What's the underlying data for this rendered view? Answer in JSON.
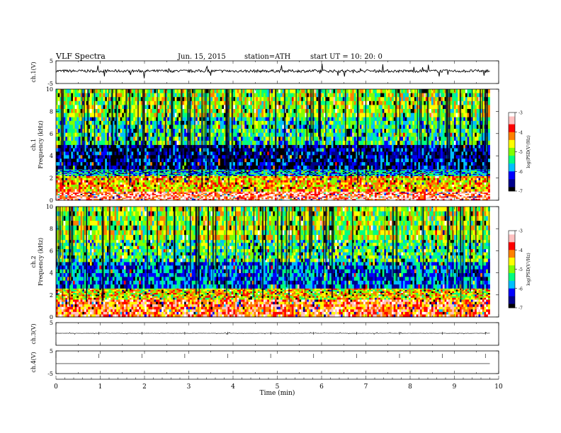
{
  "header": {
    "title": "VLF  Spectra",
    "date": "Jun. 15, 2015",
    "station": "station=ATH",
    "start_time": "start  UT  =    10: 20: 0"
  },
  "colors": {
    "colormap": [
      "#000000",
      "#00008b",
      "#0000ff",
      "#00bfff",
      "#00ff80",
      "#80ff00",
      "#ffff00",
      "#ff8000",
      "#ff0000",
      "#ffc0c0",
      "#ffffff"
    ],
    "trace": "#000000",
    "frame": "#000000"
  },
  "chart_data": [
    {
      "type": "line",
      "panel": "waveform-ch1",
      "ylabel": "ch.1(V)",
      "ylim": [
        -5,
        5
      ],
      "yticks": [
        "5",
        "-5"
      ],
      "x_range": [
        0,
        9.8
      ],
      "mean": 0.5,
      "noise_amplitude": 0.6,
      "spike_amplitude": 3.0
    },
    {
      "type": "heatmap",
      "panel": "spectrogram-ch1",
      "ylabel_line1": "ch.1",
      "ylabel_line2": "Frequency  (kHz)",
      "ylim": [
        0,
        10
      ],
      "yticks": [
        "0",
        "2",
        "4",
        "6",
        "8",
        "10"
      ],
      "colorbar_label": "log(PSD(V²/Hz)",
      "colorbar_range": [
        -7,
        -3
      ],
      "colorbar_ticks": [
        "-3",
        "-4",
        "-5",
        "-6",
        "-7"
      ],
      "band_profile": [
        {
          "f_lo": 0.0,
          "f_hi": 0.8,
          "level": -3.6
        },
        {
          "f_lo": 0.8,
          "f_hi": 2.2,
          "level": -4.4
        },
        {
          "f_lo": 2.2,
          "f_hi": 2.8,
          "level": -5.8
        },
        {
          "f_lo": 2.8,
          "f_hi": 5.0,
          "level": -6.5
        },
        {
          "f_lo": 5.0,
          "f_hi": 7.5,
          "level": -5.4
        },
        {
          "f_lo": 7.5,
          "f_hi": 10.0,
          "level": -4.9
        }
      ]
    },
    {
      "type": "heatmap",
      "panel": "spectrogram-ch2",
      "ylabel_line1": "ch.2",
      "ylabel_line2": "Frequency  (kHz)",
      "ylim": [
        0,
        10
      ],
      "yticks": [
        "0",
        "2",
        "4",
        "6",
        "8",
        "10"
      ],
      "colorbar_label": "log(PSD(V²/Hz)",
      "colorbar_range": [
        -7,
        -3
      ],
      "colorbar_ticks": [
        "-3",
        "-4",
        "-5",
        "-6",
        "-7"
      ],
      "band_profile": [
        {
          "f_lo": 0.0,
          "f_hi": 1.6,
          "level": -3.9
        },
        {
          "f_lo": 1.6,
          "f_hi": 2.6,
          "level": -4.6
        },
        {
          "f_lo": 2.6,
          "f_hi": 5.0,
          "level": -6.0
        },
        {
          "f_lo": 5.0,
          "f_hi": 7.0,
          "level": -5.3
        },
        {
          "f_lo": 7.0,
          "f_hi": 10.0,
          "level": -4.9
        }
      ]
    },
    {
      "type": "line",
      "panel": "waveform-ch3",
      "ylabel": "ch.3(V)",
      "ylim": [
        -5,
        5
      ],
      "yticks": [
        "5"
      ],
      "x_range": [
        0,
        9.8
      ],
      "mean": 0.3,
      "noise_amplitude": 0.05,
      "spike_amplitude": 0.4
    },
    {
      "type": "line",
      "panel": "waveform-ch4",
      "ylabel": "ch.4(V)",
      "ylim": [
        -5,
        5
      ],
      "yticks": [
        "5",
        "-5"
      ],
      "x_range": [
        0,
        9.8
      ],
      "mean": -0.6,
      "noise_amplitude": 0.0,
      "spike_amplitude": 0.0
    }
  ],
  "time_axis": {
    "xlabel": "Time  (min)",
    "xlim": [
      0,
      10
    ],
    "ticks": [
      "0",
      "1",
      "2",
      "3",
      "4",
      "5",
      "6",
      "7",
      "8",
      "9",
      "10"
    ]
  }
}
